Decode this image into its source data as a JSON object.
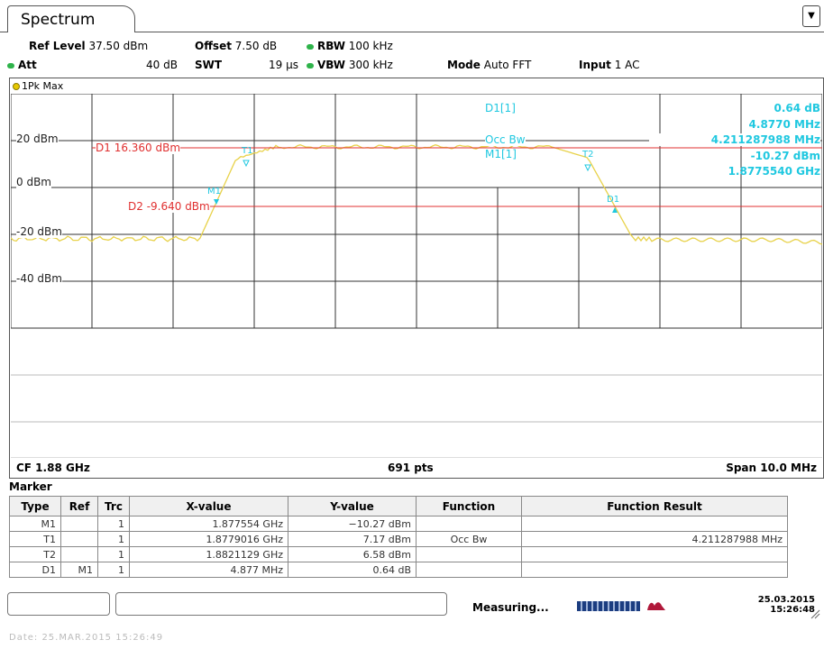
{
  "tab": {
    "title": "Spectrum"
  },
  "header": {
    "ref_level_label": "Ref Level",
    "ref_level_value": "37.50 dBm",
    "offset_label": "Offset",
    "offset_value": "7.50 dB",
    "rbw_label": "RBW",
    "rbw_value": "100 kHz",
    "att_label": "Att",
    "att_value": "40 dB",
    "swt_label": "SWT",
    "swt_value": "19 µs",
    "vbw_label": "VBW",
    "vbw_value": "300 kHz",
    "mode_label": "Mode",
    "mode_value": "Auto FFT",
    "input_label": "Input",
    "input_value": "1 AC",
    "status_dot_color": "#2eb34a"
  },
  "trace": {
    "label": "1Pk Max",
    "color": "#e8d24a"
  },
  "plot": {
    "y_labels": [
      "20 dBm",
      "0 dBm",
      "-20 dBm",
      "-40 dBm"
    ],
    "d1_line": "D1  16.360 dBm",
    "d2_line": "D2  -9.640 dBm",
    "marker_labels": {
      "t1": "T1",
      "t2": "T2",
      "m1": "M1",
      "d1": "D1"
    },
    "readout": {
      "d1_name": "D1[1]",
      "d1_value": "0.64 dB",
      "d1_freq": "4.8770 MHz",
      "occbw_name": "Occ Bw",
      "occbw_value": "4.211287988 MHz",
      "m1_name": "M1[1]",
      "m1_value": "-10.27 dBm",
      "m1_freq": "1.8775540 GHz"
    },
    "cf": "CF 1.88 GHz",
    "pts": "691 pts",
    "span": "Span 10.0 MHz",
    "line_color": "#e03030",
    "marker_color": "#20c8e0"
  },
  "marker_table": {
    "title": "Marker",
    "headers": [
      "Type",
      "Ref",
      "Trc",
      "X-value",
      "Y-value",
      "Function",
      "Function Result"
    ],
    "rows": [
      [
        "M1",
        "",
        "1",
        "1.877554 GHz",
        "−10.27 dBm",
        "",
        ""
      ],
      [
        "T1",
        "",
        "1",
        "1.8779016 GHz",
        "7.17 dBm",
        "Occ Bw",
        "4.211287988 MHz"
      ],
      [
        "T2",
        "",
        "1",
        "1.8821129 GHz",
        "6.58 dBm",
        "",
        ""
      ],
      [
        "D1",
        "M1",
        "1",
        "4.877 MHz",
        "0.64 dB",
        "",
        ""
      ]
    ]
  },
  "status": {
    "text": "Measuring...",
    "date": "25.03.2015",
    "time": "15:26:48"
  },
  "footer": {
    "text": "Date: 25.MAR.2015  15:26:49"
  }
}
